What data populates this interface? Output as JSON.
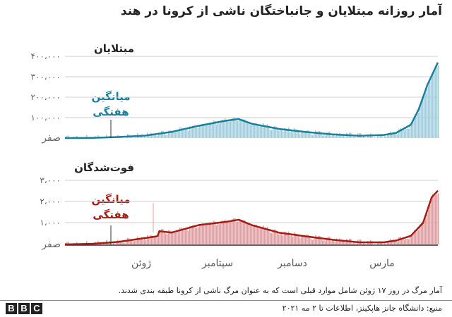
{
  "title": "آمار روزانه مبتلایان و جانباختگان ناشی از کرونا در هند",
  "panels": {
    "cases": {
      "title": "مبتلایان",
      "color": "#1b7e9a",
      "fill": "#a9ccd9",
      "yticks": [
        "۴۰۰،۰۰۰",
        "۳۰۰،۰۰۰",
        "۲۰۰،۰۰۰",
        "۱۰۰،۰۰۰",
        "صفر"
      ],
      "avg_label_line1": "میانگین",
      "avg_label_line2": "هفتگی"
    },
    "deaths": {
      "title": "فوت‌شدگان",
      "color": "#a51c15",
      "fill": "#d9a3a3",
      "yticks": [
        "۳،۰۰۰",
        "۲،۰۰۰",
        "۱،۰۰۰",
        "صفر"
      ],
      "avg_label_line1": "میانگین",
      "avg_label_line2": "هفتگی"
    }
  },
  "xticks": [
    "ژوئن",
    "سپتامبر",
    "دسامبر",
    "مارس"
  ],
  "note": "آمار مرگ در روز ۱۷ ژوئن شامل موارد قبلی است که به عنوان مرگ ناشی از کرونا طبقه بندی شدند.",
  "source": "منبع: دانشگاه جانز هاپکینز، اطلاعات تا ۲ مه ۲۰۲۱",
  "logo": [
    "B",
    "B",
    "C"
  ],
  "chart_data": [
    {
      "type": "area",
      "title": "مبتلایان",
      "xlabel": "",
      "ylabel": "",
      "ylim": [
        0,
        400000
      ],
      "xtick_labels": [
        "ژوئن",
        "سپتامبر",
        "دسامبر",
        "مارس"
      ],
      "x": [
        "2020-03",
        "2020-04",
        "2020-05",
        "2020-06",
        "2020-07",
        "2020-08",
        "2020-09-01",
        "2020-09-16",
        "2020-10",
        "2020-11",
        "2020-12",
        "2021-01",
        "2021-02",
        "2021-03-01",
        "2021-03-15",
        "2021-04-01",
        "2021-04-10",
        "2021-04-20",
        "2021-05-02"
      ],
      "series": [
        {
          "name": "میانگین هفتگی",
          "values": [
            0,
            1000,
            5000,
            12000,
            30000,
            60000,
            85000,
            93000,
            70000,
            45000,
            30000,
            18000,
            11000,
            15000,
            25000,
            65000,
            140000,
            260000,
            370000
          ]
        }
      ]
    },
    {
      "type": "area",
      "title": "فوت‌شدگان",
      "xlabel": "",
      "ylabel": "",
      "ylim": [
        0,
        3000
      ],
      "annotations": [
        "Spike on June 17 (reclassified deaths)"
      ],
      "xtick_labels": [
        "ژوئن",
        "سپتامبر",
        "دسامبر",
        "مارس"
      ],
      "x": [
        "2020-03",
        "2020-04",
        "2020-05",
        "2020-06-15",
        "2020-06-17",
        "2020-07",
        "2020-08",
        "2020-09-01",
        "2020-09-16",
        "2020-10",
        "2020-11",
        "2020-12",
        "2021-01",
        "2021-02",
        "2021-03-01",
        "2021-03-15",
        "2021-04-01",
        "2021-04-15",
        "2021-04-25",
        "2021-05-02"
      ],
      "series": [
        {
          "name": "میانگین هفتگی",
          "values": [
            0,
            30,
            120,
            380,
            620,
            550,
            900,
            1050,
            1150,
            900,
            550,
            380,
            220,
            100,
            100,
            180,
            400,
            1000,
            2200,
            2500
          ]
        }
      ]
    }
  ]
}
